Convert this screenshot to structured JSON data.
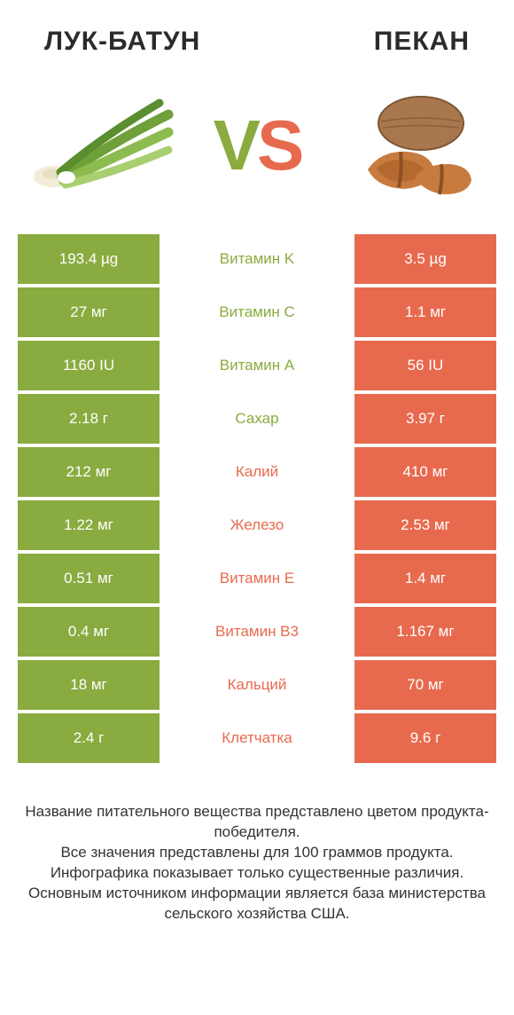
{
  "colors": {
    "green": "#8aab3f",
    "orange": "#e86a4e",
    "text": "#333333",
    "white": "#ffffff"
  },
  "header": {
    "left_title": "ЛУК-БАТУН",
    "right_title": "ПЕКАН"
  },
  "vs": {
    "v": "V",
    "s": "S"
  },
  "rows": [
    {
      "left": "193.4 µg",
      "center": "Витамин K",
      "right": "3.5 µg",
      "winner": "left"
    },
    {
      "left": "27 мг",
      "center": "Витамин C",
      "right": "1.1 мг",
      "winner": "left"
    },
    {
      "left": "1160 IU",
      "center": "Витамин A",
      "right": "56 IU",
      "winner": "left"
    },
    {
      "left": "2.18 г",
      "center": "Сахар",
      "right": "3.97 г",
      "winner": "left"
    },
    {
      "left": "212 мг",
      "center": "Калий",
      "right": "410 мг",
      "winner": "right"
    },
    {
      "left": "1.22 мг",
      "center": "Железо",
      "right": "2.53 мг",
      "winner": "right"
    },
    {
      "left": "0.51 мг",
      "center": "Витамин E",
      "right": "1.4 мг",
      "winner": "right"
    },
    {
      "left": "0.4 мг",
      "center": "Витамин B3",
      "right": "1.167 мг",
      "winner": "right"
    },
    {
      "left": "18 мг",
      "center": "Кальций",
      "right": "70 мг",
      "winner": "right"
    },
    {
      "left": "2.4 г",
      "center": "Клетчатка",
      "right": "9.6 г",
      "winner": "right"
    }
  ],
  "footer": {
    "line1": "Название питательного вещества представлено цветом продукта-победителя.",
    "line2": "Все значения представлены для 100 граммов продукта.",
    "line3": "Инфографика показывает только существенные различия.",
    "line4": "Основным источником информации является база министерства сельского хозяйства США."
  }
}
